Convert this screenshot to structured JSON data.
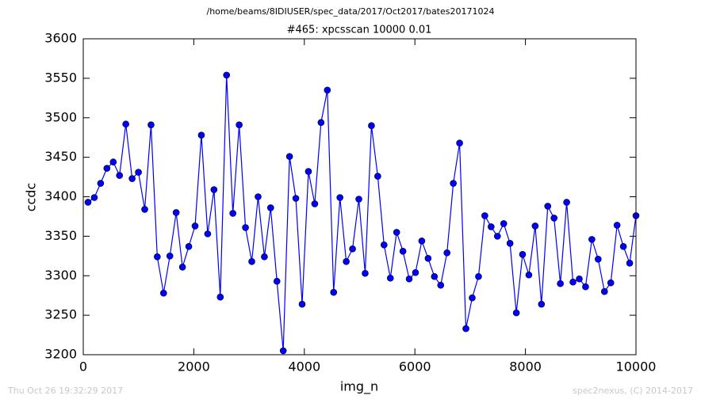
{
  "chart_data": {
    "type": "line",
    "suptitle": "/home/beams/8IDIUSER/spec_data/2017/Oct2017/bates20171024",
    "title": "#465: xpcsscan 10000 0.01",
    "x_label": "img_n",
    "y_label": "ccdc",
    "footer_left": "Thu Oct 26 19:32:29 2017",
    "footer_right": "spec2nexus, (C) 2014-2017",
    "color": "#0000ff",
    "markers": true,
    "grid": false,
    "xlim": [
      0,
      10000
    ],
    "ylim": [
      3200,
      3600
    ],
    "xticks": [
      0,
      2000,
      4000,
      6000,
      8000,
      10000
    ],
    "yticks": [
      3200,
      3250,
      3300,
      3350,
      3400,
      3450,
      3500,
      3550,
      3600
    ],
    "x": [
      86,
      200,
      314,
      428,
      542,
      656,
      770,
      884,
      998,
      1112,
      1226,
      1339,
      1453,
      1567,
      1681,
      1795,
      1909,
      2023,
      2137,
      2251,
      2365,
      2479,
      2593,
      2707,
      2821,
      2935,
      3049,
      3163,
      3277,
      3390,
      3504,
      3618,
      3732,
      3846,
      3960,
      4074,
      4188,
      4302,
      4416,
      4530,
      4644,
      4758,
      4872,
      4986,
      5100,
      5214,
      5328,
      5442,
      5556,
      5670,
      5784,
      5897,
      6011,
      6125,
      6239,
      6353,
      6467,
      6581,
      6695,
      6809,
      6923,
      7037,
      7151,
      7265,
      7379,
      7493,
      7607,
      7721,
      7835,
      7948,
      8062,
      8176,
      8290,
      8404,
      8518,
      8632,
      8746,
      8860,
      8974,
      9088,
      9202,
      9316,
      9430,
      9544,
      9658,
      9772,
      9886,
      10000
    ],
    "values": [
      3393,
      3399,
      3417,
      3436,
      3444,
      3427,
      3492,
      3423,
      3431,
      3384,
      3491,
      3324,
      3278,
      3325,
      3380,
      3311,
      3337,
      3363,
      3478,
      3353,
      3409,
      3273,
      3554,
      3379,
      3491,
      3361,
      3318,
      3400,
      3324,
      3386,
      3293,
      3205,
      3451,
      3398,
      3264,
      3432,
      3391,
      3494,
      3535,
      3279,
      3399,
      3318,
      3334,
      3397,
      3303,
      3490,
      3426,
      3339,
      3297,
      3355,
      3331,
      3296,
      3304,
      3344,
      3322,
      3299,
      3288,
      3329,
      3417,
      3468,
      3233,
      3272,
      3299,
      3376,
      3362,
      3350,
      3366,
      3341,
      3253,
      3327,
      3301,
      3363,
      3264,
      3388,
      3373,
      3290,
      3393,
      3292,
      3296,
      3286,
      3346,
      3321,
      3280,
      3291,
      3364,
      3337,
      3316,
      3376
    ]
  }
}
